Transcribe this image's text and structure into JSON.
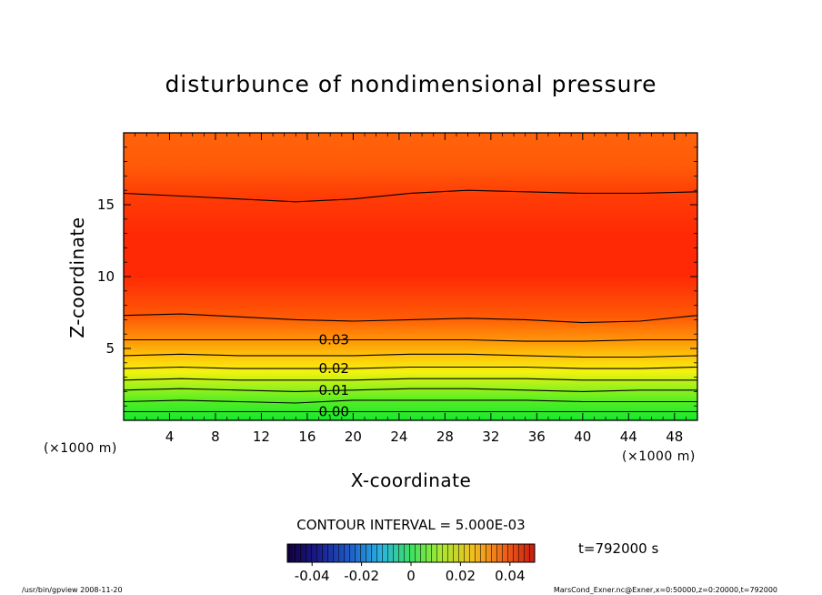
{
  "title": "disturbunce of nondimensional pressure",
  "xlabel": "X-coordinate",
  "ylabel": "Z-coordinate",
  "x_unit": "(×1000 m)",
  "y_unit": "(×1000 m)",
  "contour_interval_text": "CONTOUR INTERVAL = 5.000E-03",
  "time_text": "t=792000 s",
  "footer_left": "/usr/bin/gpview  2008-11-20",
  "footer_right": "MarsCond_Exner.nc@Exner,x=0:50000,z=0:20000,t=792000",
  "chart_data": {
    "type": "heatmap",
    "title": "disturbunce of nondimensional pressure",
    "xlabel": "X-coordinate",
    "ylabel": "Z-coordinate",
    "xlim": [
      0,
      50
    ],
    "ylim": [
      0,
      20
    ],
    "x_ticks": [
      4,
      8,
      12,
      16,
      20,
      24,
      28,
      32,
      36,
      40,
      44,
      48
    ],
    "y_ticks": [
      5,
      10,
      15
    ],
    "contour_interval": 0.005,
    "contour_labels": [
      {
        "text": "0.00",
        "value": 0.0,
        "x": 17.0,
        "z": 0.6
      },
      {
        "text": "0.01",
        "value": 0.01,
        "x": 17.0,
        "z": 2.1
      },
      {
        "text": "0.02",
        "value": 0.02,
        "x": 17.0,
        "z": 3.6
      },
      {
        "text": "0.03",
        "value": 0.03,
        "x": 17.0,
        "z": 5.6
      }
    ],
    "contour_levels": [
      {
        "value": 0.0,
        "z": [
          0.6,
          0.6,
          0.6,
          0.6,
          0.6,
          0.6,
          0.6,
          0.6,
          0.6,
          0.6,
          0.6
        ]
      },
      {
        "value": 0.005,
        "z": [
          1.3,
          1.4,
          1.3,
          1.2,
          1.4,
          1.4,
          1.4,
          1.4,
          1.3,
          1.3,
          1.3
        ]
      },
      {
        "value": 0.01,
        "z": [
          2.1,
          2.2,
          2.1,
          2.0,
          2.1,
          2.2,
          2.2,
          2.1,
          2.0,
          2.1,
          2.1
        ]
      },
      {
        "value": 0.015,
        "z": [
          2.8,
          2.9,
          2.8,
          2.8,
          2.8,
          2.9,
          2.9,
          2.9,
          2.8,
          2.8,
          2.8
        ]
      },
      {
        "value": 0.02,
        "z": [
          3.6,
          3.7,
          3.6,
          3.6,
          3.6,
          3.7,
          3.7,
          3.7,
          3.6,
          3.6,
          3.7
        ]
      },
      {
        "value": 0.025,
        "z": [
          4.5,
          4.6,
          4.5,
          4.5,
          4.5,
          4.6,
          4.6,
          4.5,
          4.4,
          4.4,
          4.5
        ]
      },
      {
        "value": 0.03,
        "z": [
          5.6,
          5.6,
          5.6,
          5.6,
          5.6,
          5.6,
          5.6,
          5.5,
          5.5,
          5.6,
          5.6
        ]
      },
      {
        "value": 0.035,
        "z": [
          7.3,
          7.4,
          7.2,
          7.0,
          6.9,
          7.0,
          7.1,
          7.0,
          6.8,
          6.9,
          7.3
        ]
      },
      {
        "value": 0.035,
        "z": [
          15.8,
          15.6,
          15.4,
          15.2,
          15.4,
          15.8,
          16.0,
          15.9,
          15.8,
          15.8,
          15.9
        ]
      }
    ],
    "colorbar": {
      "ticks": [
        "-0.04",
        "-0.02",
        "0",
        "0.02",
        "0.04"
      ],
      "tick_values": [
        -0.04,
        -0.02,
        0,
        0.02,
        0.04
      ],
      "range": [
        -0.05,
        0.05
      ]
    }
  }
}
